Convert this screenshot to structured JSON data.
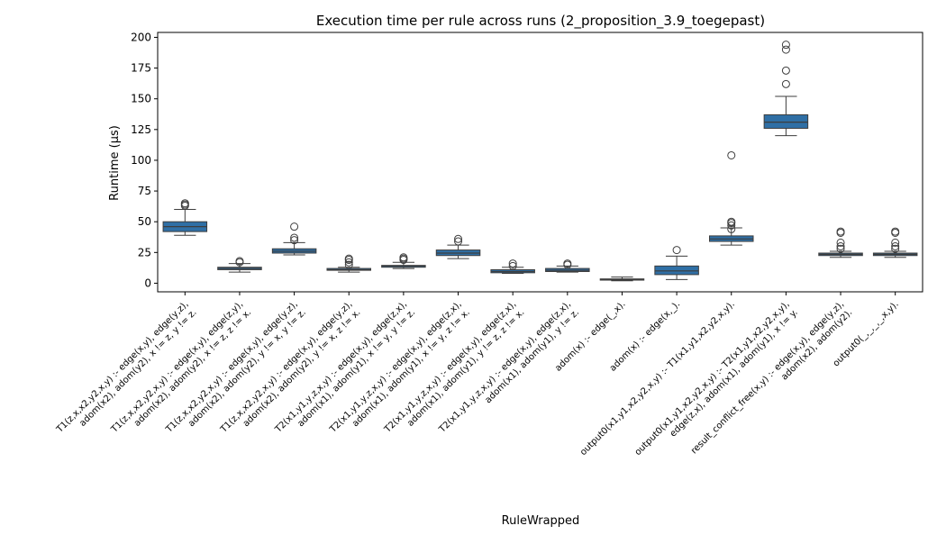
{
  "chart_data": {
    "type": "box",
    "title": "Execution time per rule across runs (2_proposition_3.9_toegepast)",
    "xlabel": "RuleWrapped",
    "ylabel": "Runtime (µs)",
    "ylim": [
      -7,
      204
    ],
    "yticks": [
      0,
      25,
      50,
      75,
      100,
      125,
      150,
      175,
      200
    ],
    "grid": false,
    "box_color": "#2f6fa5",
    "categories": [
      {
        "label": [
          "T1(z,x,x2,y2,x,y) :-    edge(x,y),    edge(y,z),",
          "adom(x2),   adom(y2),   x != z,   y != z."
        ],
        "whislo": 39,
        "q1": 42,
        "med": 46,
        "q3": 50,
        "whishi": 60,
        "fliers": [
          63,
          64,
          65
        ]
      },
      {
        "label": [
          "T1(z,x,x2,y2,x,y) :-    edge(x,y),    edge(z,y),",
          "adom(x2),   adom(y2),   x != z,   z != x."
        ],
        "whislo": 9,
        "q1": 11,
        "med": 12,
        "q3": 13,
        "whishi": 16,
        "fliers": [
          17,
          18
        ]
      },
      {
        "label": [
          "T1(z,x,x2,y2,x,y) :-    edge(x,y),    edge(y,z),",
          "adom(x2),   adom(y2),   y != x,   y != z."
        ],
        "whislo": 23,
        "q1": 24.5,
        "med": 26,
        "q3": 28,
        "whishi": 33,
        "fliers": [
          35,
          37,
          46
        ]
      },
      {
        "label": [
          "T1(z,x,x2,y2,x,y) :-    edge(x,y),    edge(y,z),",
          "adom(x2),   adom(y2),   y != x,   z != x."
        ],
        "whislo": 9,
        "q1": 10.5,
        "med": 11,
        "q3": 12,
        "whishi": 13,
        "fliers": [
          15,
          17,
          19,
          20
        ]
      },
      {
        "label": [
          "T2(x1,y1,y,z,x,y) :-    edge(x,y),    edge(z,x),",
          "adom(x1),   adom(y1),   x != y,   y != z."
        ],
        "whislo": 12,
        "q1": 13,
        "med": 14,
        "q3": 14.5,
        "whishi": 17,
        "fliers": [
          19,
          20,
          21
        ]
      },
      {
        "label": [
          "T2(x1,y1,y,z,x,y) :-    edge(x,y),    edge(z,x),",
          "adom(x1),   adom(y1),   x != y,   z != x."
        ],
        "whislo": 20,
        "q1": 22.5,
        "med": 24.5,
        "q3": 27,
        "whishi": 31,
        "fliers": [
          34,
          36
        ]
      },
      {
        "label": [
          "T2(x1,y1,y,z,x,y) :-    edge(x,y),    edge(z,x),",
          "adom(x1),   adom(y1),   y != z,   z != x."
        ],
        "whislo": 8,
        "q1": 8.5,
        "med": 9.5,
        "q3": 11,
        "whishi": 13,
        "fliers": [
          14,
          16
        ]
      },
      {
        "label": [
          "T2(x1,y1,y,z,x,y) :-    edge(x,y),    edge(z,x),",
          "adom(x1),   adom(y1),   y != z."
        ],
        "whislo": 9,
        "q1": 9.5,
        "med": 10.5,
        "q3": 12,
        "whishi": 14,
        "fliers": [
          15,
          16
        ]
      },
      {
        "label": [
          "adom(x) :-    edge(_,x)."
        ],
        "whislo": 2,
        "q1": 2.5,
        "med": 3,
        "q3": 3.5,
        "whishi": 5,
        "fliers": []
      },
      {
        "label": [
          "adom(x) :-    edge(x,_)."
        ],
        "whislo": 3,
        "q1": 7,
        "med": 10,
        "q3": 14,
        "whishi": 22,
        "fliers": [
          27
        ]
      },
      {
        "label": [
          "output0(x1,y1,x2,y2,x,y) :-    T1(x1,y1,x2,y2,x,y)."
        ],
        "whislo": 31,
        "q1": 34,
        "med": 36,
        "q3": 38.5,
        "whishi": 45,
        "fliers": [
          44,
          47,
          49,
          50,
          104
        ]
      },
      {
        "label": [
          "output0(x1,y1,x2,y2,x,y) :-    T2(x1,y1,x2,y2,x,y),",
          "edge(z,x),   adom(x1),   adom(y1),   x != y."
        ],
        "whislo": 120,
        "q1": 126,
        "med": 131,
        "q3": 137,
        "whishi": 152,
        "fliers": [
          162,
          173,
          190,
          194
        ]
      },
      {
        "label": [
          "result_conflict_free(x,y) :-    edge(x,y),    edge(y,z),",
          "adom(x2),   adom(y2)."
        ],
        "whislo": 21,
        "q1": 22.5,
        "med": 23.5,
        "q3": 24.5,
        "whishi": 26,
        "fliers": [
          28,
          30,
          33,
          41,
          42
        ]
      },
      {
        "label": [
          "output0(_,_,_,_,x,y)."
        ],
        "whislo": 21,
        "q1": 22.5,
        "med": 23.5,
        "q3": 24.5,
        "whishi": 26,
        "fliers": [
          28,
          30,
          33,
          41,
          42
        ]
      }
    ]
  }
}
